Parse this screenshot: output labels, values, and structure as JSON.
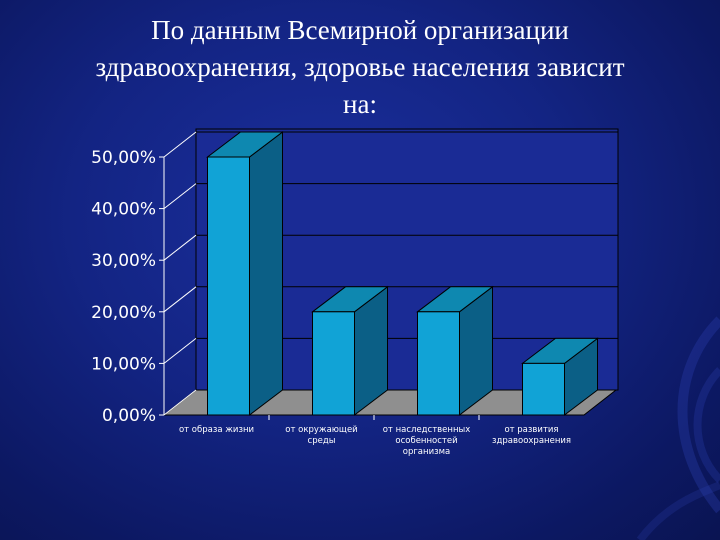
{
  "slide": {
    "title_lines": [
      "По данным Всемирной организации",
      "здравоохранения, здоровье населения зависит",
      "на:"
    ]
  },
  "colors": {
    "bar_front": "#11a3d6",
    "bar_side": "#0b5f86",
    "bar_top": "#0e88b0",
    "floor": "#8f8f8f",
    "back_wall": "#1a2b95"
  },
  "chart_data": {
    "type": "bar",
    "title": "",
    "xlabel": "",
    "ylabel": "",
    "ylim": [
      0,
      0.5
    ],
    "yticks": [
      0,
      0.1,
      0.2,
      0.3,
      0.4,
      0.5
    ],
    "ytick_labels": [
      "0,00%",
      "10,00%",
      "20,00%",
      "30,00%",
      "40,00%",
      "50,00%"
    ],
    "grid": true,
    "legend": "none",
    "categories": [
      [
        "от образа жизни"
      ],
      [
        "от окружающей",
        "среды"
      ],
      [
        "от наследственных",
        "особенностей",
        "организма"
      ],
      [
        "от развития",
        "здравоохранения"
      ]
    ],
    "values": [
      0.5,
      0.2,
      0.2,
      0.1
    ]
  }
}
